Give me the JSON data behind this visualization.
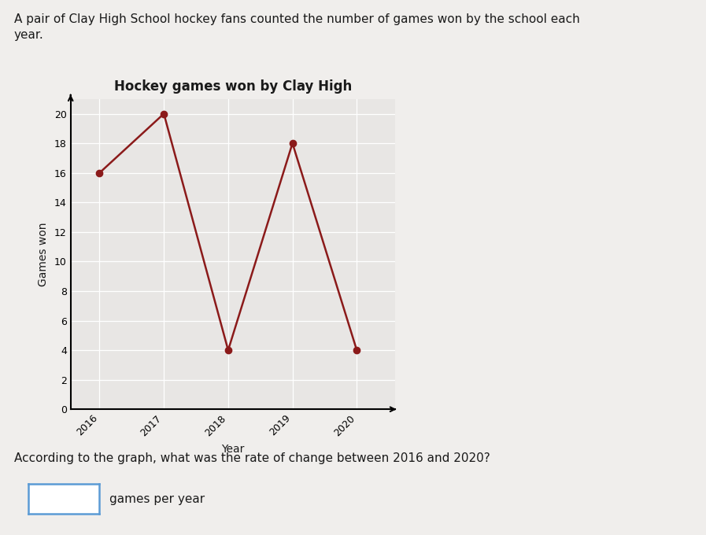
{
  "title": "Hockey games won by Clay High",
  "xlabel": "Year",
  "ylabel": "Games won",
  "years": [
    2016,
    2017,
    2018,
    2019,
    2020
  ],
  "games": [
    16,
    20,
    4,
    18,
    4
  ],
  "line_color": "#8B1A1A",
  "marker_color": "#8B1A1A",
  "ylim": [
    0,
    21
  ],
  "yticks": [
    0,
    2,
    4,
    6,
    8,
    10,
    12,
    14,
    16,
    18,
    20
  ],
  "page_bg": "#f0eeec",
  "chart_bg": "#e8e6e4",
  "grid_color": "#ffffff",
  "text_intro_line1": "A pair of Clay High School hockey fans counted the number of games won by the school each",
  "text_intro_line2": "year.",
  "text_question": "According to the graph, what was the rate of change between 2016 and 2020?",
  "text_answer_label": "games per year",
  "title_fontsize": 12,
  "axis_label_fontsize": 10,
  "tick_fontsize": 9,
  "text_fontsize": 11,
  "answer_box_color": "#5b9bd5"
}
